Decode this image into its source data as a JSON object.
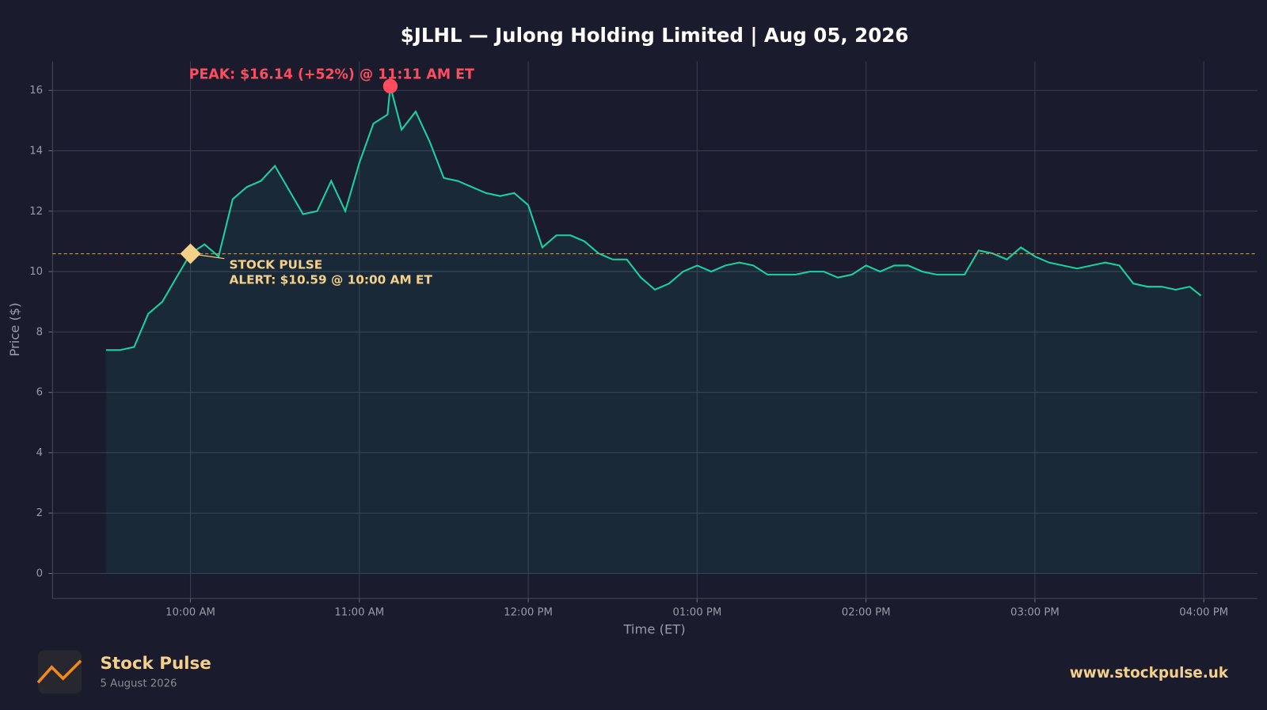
{
  "chart_data": {
    "type": "line",
    "title": "$JLHL — Julong Holding Limited  |  Aug 05, 2026",
    "x_label": "Time (ET)",
    "y_label": "Price ($)",
    "x": [
      "09:30 AM",
      "09:35 AM",
      "09:40 AM",
      "09:45 AM",
      "09:50 AM",
      "09:55 AM",
      "10:00 AM",
      "10:05 AM",
      "10:10 AM",
      "10:15 AM",
      "10:20 AM",
      "10:25 AM",
      "10:30 AM",
      "10:35 AM",
      "10:40 AM",
      "10:45 AM",
      "10:50 AM",
      "10:55 AM",
      "11:00 AM",
      "11:05 AM",
      "11:10 AM",
      "11:11 AM",
      "11:15 AM",
      "11:20 AM",
      "11:25 AM",
      "11:30 AM",
      "11:35 AM",
      "11:40 AM",
      "11:45 AM",
      "11:50 AM",
      "11:55 AM",
      "12:00 PM",
      "12:05 PM",
      "12:10 PM",
      "12:15 PM",
      "12:20 PM",
      "12:25 PM",
      "12:30 PM",
      "12:35 PM",
      "12:40 PM",
      "12:45 PM",
      "12:50 PM",
      "12:55 PM",
      "01:00 PM",
      "01:05 PM",
      "01:10 PM",
      "01:15 PM",
      "01:20 PM",
      "01:25 PM",
      "01:30 PM",
      "01:35 PM",
      "01:40 PM",
      "01:45 PM",
      "01:50 PM",
      "01:55 PM",
      "02:00 PM",
      "02:05 PM",
      "02:10 PM",
      "02:15 PM",
      "02:20 PM",
      "02:25 PM",
      "02:30 PM",
      "02:35 PM",
      "02:40 PM",
      "02:45 PM",
      "02:50 PM",
      "02:55 PM",
      "03:00 PM",
      "03:05 PM",
      "03:10 PM",
      "03:15 PM",
      "03:20 PM",
      "03:25 PM",
      "03:30 PM",
      "03:35 PM",
      "03:40 PM",
      "03:45 PM",
      "03:50 PM",
      "03:55 PM",
      "03:59 PM"
    ],
    "series": [
      {
        "name": "JLHL",
        "color": "#19d3a2",
        "values": [
          7.4,
          7.4,
          7.5,
          8.6,
          9.0,
          9.8,
          10.59,
          10.9,
          10.5,
          12.4,
          12.8,
          13.0,
          13.5,
          12.7,
          11.9,
          12.0,
          13.0,
          12.0,
          13.6,
          14.9,
          15.2,
          16.14,
          14.7,
          15.3,
          14.3,
          13.1,
          13.0,
          12.8,
          12.6,
          12.5,
          12.6,
          12.2,
          10.8,
          11.2,
          11.2,
          11.0,
          10.6,
          10.4,
          10.4,
          9.8,
          9.4,
          9.6,
          10.0,
          10.2,
          10.0,
          10.2,
          10.3,
          10.2,
          9.9,
          9.9,
          9.9,
          10.0,
          10.0,
          9.8,
          9.9,
          10.2,
          10.0,
          10.2,
          10.2,
          10.0,
          9.9,
          9.9,
          9.9,
          10.7,
          10.6,
          10.4,
          10.8,
          10.5,
          10.3,
          10.2,
          10.1,
          10.2,
          10.3,
          10.2,
          9.6,
          9.5,
          9.5,
          9.4,
          9.5,
          9.2
        ]
      }
    ],
    "xlim": [
      "09:11 AM",
      "04:19 PM"
    ],
    "xticks": [
      "10:00 AM",
      "11:00 AM",
      "12:00 PM",
      "01:00 PM",
      "02:00 PM",
      "03:00 PM",
      "04:00 PM"
    ],
    "ylim": [
      -0.83,
      16.96
    ],
    "yticks": [
      0,
      2,
      4,
      6,
      8,
      10,
      12,
      14,
      16
    ],
    "grid": true,
    "peak": {
      "x": "11:11 AM",
      "value": 16.14,
      "label": "PEAK: $16.14 (+52%) @ 11:11 AM ET",
      "color": "#ff4d5e"
    },
    "alert": {
      "x": "10:00 AM",
      "value": 10.59,
      "lines": [
        "STOCK PULSE",
        "ALERT: $10.59 @ 10:00 AM ET"
      ],
      "color": "#f5d08a"
    }
  },
  "footer": {
    "brand": "Stock Pulse",
    "date": "5 August 2026",
    "url": "www.stockpulse.uk"
  }
}
